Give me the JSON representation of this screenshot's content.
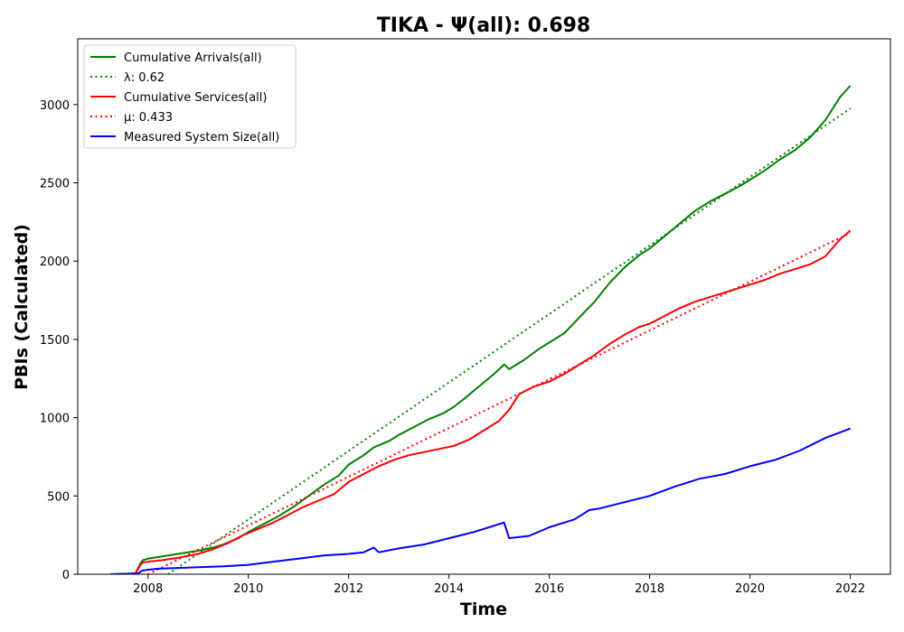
{
  "chart_data": {
    "type": "line",
    "title": "TIKA -  Ψ(all): 0.698",
    "xlabel": "Time",
    "ylabel": "PBIs (Calculated)",
    "xlim": [
      2006.6,
      2022.8
    ],
    "ylim": [
      0,
      3420
    ],
    "xticks": [
      2008,
      2010,
      2012,
      2014,
      2016,
      2018,
      2020,
      2022
    ],
    "yticks": [
      0,
      500,
      1000,
      1500,
      2000,
      2500,
      3000
    ],
    "grid": false,
    "legend_position": "top-left",
    "series": [
      {
        "name": "Cumulative Arrivals(all)",
        "style": "solid",
        "color": "#008000",
        "points": [
          [
            2007.25,
            0
          ],
          [
            2007.6,
            3
          ],
          [
            2007.75,
            5
          ],
          [
            2007.85,
            70
          ],
          [
            2007.9,
            90
          ],
          [
            2008,
            100
          ],
          [
            2008.3,
            115
          ],
          [
            2008.6,
            130
          ],
          [
            2009,
            150
          ],
          [
            2009.3,
            170
          ],
          [
            2009.5,
            190
          ],
          [
            2009.8,
            230
          ],
          [
            2010,
            270
          ],
          [
            2010.3,
            320
          ],
          [
            2010.6,
            370
          ],
          [
            2010.9,
            430
          ],
          [
            2011.2,
            500
          ],
          [
            2011.5,
            570
          ],
          [
            2011.8,
            630
          ],
          [
            2012,
            700
          ],
          [
            2012.3,
            760
          ],
          [
            2012.5,
            810
          ],
          [
            2012.8,
            850
          ],
          [
            2013,
            890
          ],
          [
            2013.3,
            940
          ],
          [
            2013.6,
            990
          ],
          [
            2013.9,
            1030
          ],
          [
            2014.1,
            1070
          ],
          [
            2014.3,
            1120
          ],
          [
            2014.6,
            1200
          ],
          [
            2014.9,
            1280
          ],
          [
            2015.1,
            1340
          ],
          [
            2015.2,
            1310
          ],
          [
            2015.5,
            1370
          ],
          [
            2015.8,
            1440
          ],
          [
            2016,
            1480
          ],
          [
            2016.3,
            1540
          ],
          [
            2016.6,
            1640
          ],
          [
            2016.9,
            1740
          ],
          [
            2017.2,
            1860
          ],
          [
            2017.5,
            1960
          ],
          [
            2017.8,
            2040
          ],
          [
            2018,
            2080
          ],
          [
            2018.3,
            2160
          ],
          [
            2018.6,
            2240
          ],
          [
            2018.9,
            2320
          ],
          [
            2019.2,
            2380
          ],
          [
            2019.5,
            2430
          ],
          [
            2019.8,
            2480
          ],
          [
            2020,
            2520
          ],
          [
            2020.3,
            2580
          ],
          [
            2020.6,
            2650
          ],
          [
            2020.9,
            2710
          ],
          [
            2021.2,
            2790
          ],
          [
            2021.5,
            2900
          ],
          [
            2021.8,
            3050
          ],
          [
            2022,
            3120
          ]
        ]
      },
      {
        "name": "λ: 0.62",
        "style": "dotted",
        "color": "#008000",
        "points": [
          [
            2008.4,
            0
          ],
          [
            2022,
            2975
          ]
        ]
      },
      {
        "name": "Cumulative Services(all)",
        "style": "solid",
        "color": "#ff0000",
        "points": [
          [
            2007.25,
            0
          ],
          [
            2007.6,
            2
          ],
          [
            2007.75,
            5
          ],
          [
            2007.85,
            60
          ],
          [
            2007.9,
            75
          ],
          [
            2008,
            80
          ],
          [
            2008.3,
            90
          ],
          [
            2008.6,
            105
          ],
          [
            2009,
            130
          ],
          [
            2009.3,
            160
          ],
          [
            2009.6,
            200
          ],
          [
            2009.9,
            250
          ],
          [
            2010.2,
            290
          ],
          [
            2010.5,
            330
          ],
          [
            2010.8,
            380
          ],
          [
            2011.1,
            430
          ],
          [
            2011.4,
            470
          ],
          [
            2011.7,
            510
          ],
          [
            2012,
            590
          ],
          [
            2012.3,
            640
          ],
          [
            2012.6,
            690
          ],
          [
            2012.9,
            730
          ],
          [
            2013.2,
            760
          ],
          [
            2013.5,
            780
          ],
          [
            2013.8,
            800
          ],
          [
            2014.1,
            820
          ],
          [
            2014.4,
            860
          ],
          [
            2014.7,
            920
          ],
          [
            2015,
            980
          ],
          [
            2015.2,
            1050
          ],
          [
            2015.4,
            1150
          ],
          [
            2015.7,
            1200
          ],
          [
            2016,
            1230
          ],
          [
            2016.3,
            1280
          ],
          [
            2016.6,
            1340
          ],
          [
            2016.9,
            1400
          ],
          [
            2017.2,
            1470
          ],
          [
            2017.5,
            1530
          ],
          [
            2017.8,
            1580
          ],
          [
            2018,
            1600
          ],
          [
            2018.3,
            1650
          ],
          [
            2018.6,
            1700
          ],
          [
            2018.9,
            1740
          ],
          [
            2019.2,
            1770
          ],
          [
            2019.5,
            1800
          ],
          [
            2019.8,
            1830
          ],
          [
            2020,
            1850
          ],
          [
            2020.3,
            1880
          ],
          [
            2020.6,
            1920
          ],
          [
            2020.9,
            1950
          ],
          [
            2021.2,
            1980
          ],
          [
            2021.5,
            2030
          ],
          [
            2021.8,
            2140
          ],
          [
            2022,
            2195
          ]
        ]
      },
      {
        "name": "μ: 0.433",
        "style": "dotted",
        "color": "#ff0000",
        "points": [
          [
            2008,
            0
          ],
          [
            2022,
            2180
          ]
        ]
      },
      {
        "name": "Measured System Size(all)",
        "style": "solid",
        "color": "#0000ff",
        "points": [
          [
            2007.25,
            0
          ],
          [
            2007.8,
            5
          ],
          [
            2007.9,
            25
          ],
          [
            2008.2,
            35
          ],
          [
            2008.6,
            40
          ],
          [
            2009,
            45
          ],
          [
            2009.5,
            50
          ],
          [
            2010,
            60
          ],
          [
            2010.5,
            80
          ],
          [
            2011,
            100
          ],
          [
            2011.5,
            120
          ],
          [
            2012,
            130
          ],
          [
            2012.3,
            140
          ],
          [
            2012.5,
            170
          ],
          [
            2012.6,
            140
          ],
          [
            2013,
            165
          ],
          [
            2013.5,
            190
          ],
          [
            2014,
            230
          ],
          [
            2014.5,
            270
          ],
          [
            2015,
            320
          ],
          [
            2015.1,
            330
          ],
          [
            2015.2,
            230
          ],
          [
            2015.6,
            245
          ],
          [
            2016,
            300
          ],
          [
            2016.5,
            350
          ],
          [
            2016.8,
            410
          ],
          [
            2017,
            420
          ],
          [
            2017.5,
            460
          ],
          [
            2018,
            500
          ],
          [
            2018.5,
            560
          ],
          [
            2019,
            610
          ],
          [
            2019.5,
            640
          ],
          [
            2020,
            690
          ],
          [
            2020.5,
            730
          ],
          [
            2021,
            790
          ],
          [
            2021.5,
            870
          ],
          [
            2022,
            930
          ]
        ]
      }
    ]
  }
}
